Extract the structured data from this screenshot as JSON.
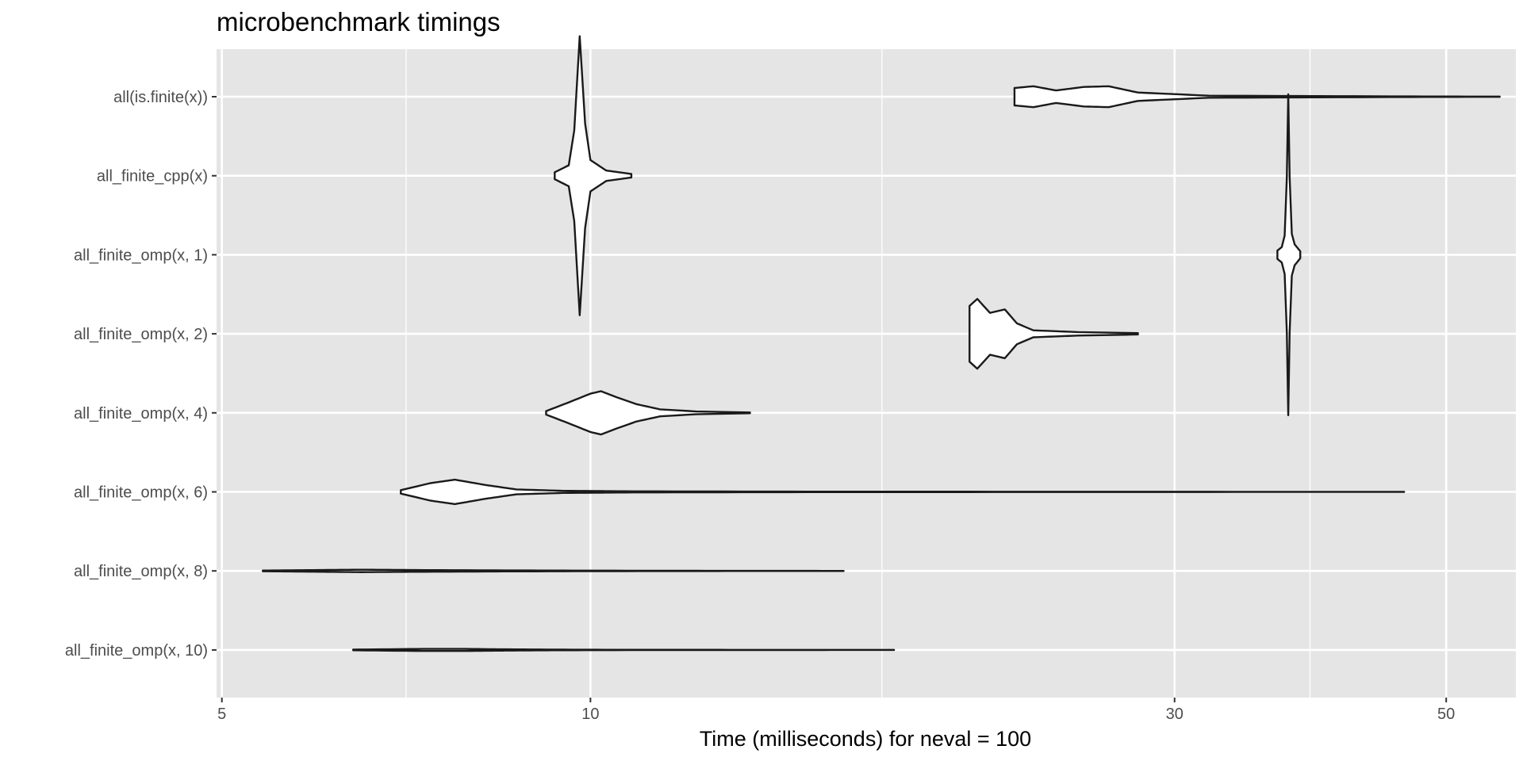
{
  "chart_data": {
    "type": "violin",
    "title": "microbenchmark timings",
    "xlabel": "Time (milliseconds) for neval = 100",
    "ylabel": "",
    "x_scale": "log10",
    "xlim": [
      4.95,
      57
    ],
    "x_ticks": [
      5,
      10,
      30,
      50
    ],
    "x_tick_labels": [
      "5",
      "10",
      "30",
      "50"
    ],
    "x_minor_breaks": [
      7.07,
      17.3,
      38.7
    ],
    "grid": true,
    "legend": "none",
    "colors": {
      "panel": "#e5e5e5",
      "grid": "#ffffff",
      "outline": "#1a1a1a",
      "axis_text": "#4d4d4d"
    },
    "series": [
      {
        "name": "all_finite_omp(x, 10)",
        "min": 6.4,
        "max": 17.7,
        "profile": [
          [
            6.4,
            0.01
          ],
          [
            7.3,
            0.03
          ],
          [
            7.9,
            0.03
          ],
          [
            8.4,
            0.02
          ],
          [
            9.3,
            0.01
          ],
          [
            10.5,
            0.005
          ],
          [
            13.0,
            0.003
          ],
          [
            15.5,
            0.002
          ],
          [
            17.7,
            0.001
          ]
        ]
      },
      {
        "name": "all_finite_omp(x, 8)",
        "min": 5.4,
        "max": 16.1,
        "profile": [
          [
            5.4,
            0.01
          ],
          [
            6.0,
            0.025
          ],
          [
            6.5,
            0.035
          ],
          [
            7.2,
            0.025
          ],
          [
            8.5,
            0.015
          ],
          [
            10.0,
            0.008
          ],
          [
            12.5,
            0.004
          ],
          [
            14.5,
            0.002
          ],
          [
            16.1,
            0.001
          ]
        ]
      },
      {
        "name": "all_finite_omp(x, 6)",
        "min": 7.0,
        "max": 46.2,
        "profile": [
          [
            7.0,
            0.05
          ],
          [
            7.4,
            0.25
          ],
          [
            7.75,
            0.35
          ],
          [
            8.2,
            0.2
          ],
          [
            8.7,
            0.07
          ],
          [
            9.5,
            0.03
          ],
          [
            11.0,
            0.015
          ],
          [
            15.0,
            0.008
          ],
          [
            25.0,
            0.004
          ],
          [
            38.0,
            0.002
          ],
          [
            46.2,
            0.001
          ]
        ]
      },
      {
        "name": "all_finite_omp(x, 4)",
        "min": 9.2,
        "max": 13.5,
        "profile": [
          [
            9.2,
            0.05
          ],
          [
            9.6,
            0.3
          ],
          [
            10.0,
            0.55
          ],
          [
            10.2,
            0.62
          ],
          [
            10.5,
            0.45
          ],
          [
            10.9,
            0.25
          ],
          [
            11.4,
            0.1
          ],
          [
            12.2,
            0.04
          ],
          [
            13.5,
            0.01
          ]
        ]
      },
      {
        "name": "all_finite_omp(x, 2)",
        "min": 20.4,
        "max": 28.0,
        "profile": [
          [
            20.4,
            0.8
          ],
          [
            20.7,
            1.0
          ],
          [
            21.2,
            0.6
          ],
          [
            21.8,
            0.7
          ],
          [
            22.3,
            0.3
          ],
          [
            23.0,
            0.1
          ],
          [
            25.0,
            0.05
          ],
          [
            28.0,
            0.02
          ]
        ]
      },
      {
        "name": "all_finite_omp(x, 1)",
        "min": 36.4,
        "max": 38.0,
        "profile": [
          [
            36.4,
            0.12
          ],
          [
            36.7,
            0.22
          ],
          [
            36.9,
            0.55
          ],
          [
            37.05,
            2.2
          ],
          [
            37.15,
            4.6
          ],
          [
            37.25,
            2.2
          ],
          [
            37.4,
            0.6
          ],
          [
            37.6,
            0.3
          ],
          [
            38.0,
            0.1
          ]
        ]
      },
      {
        "name": "all_finite_cpp(x)",
        "min": 9.35,
        "max": 10.8,
        "profile": [
          [
            9.35,
            0.1
          ],
          [
            9.6,
            0.3
          ],
          [
            9.7,
            1.3
          ],
          [
            9.8,
            4.0
          ],
          [
            9.9,
            1.5
          ],
          [
            10.0,
            0.45
          ],
          [
            10.3,
            0.15
          ],
          [
            10.8,
            0.05
          ]
        ]
      },
      {
        "name": "all(is.finite(x))",
        "min": 22.2,
        "max": 55.3,
        "profile": [
          [
            22.2,
            0.25
          ],
          [
            23.0,
            0.3
          ],
          [
            24.0,
            0.18
          ],
          [
            25.3,
            0.28
          ],
          [
            26.5,
            0.3
          ],
          [
            28.0,
            0.12
          ],
          [
            32.0,
            0.03
          ],
          [
            45.0,
            0.01
          ],
          [
            55.3,
            0.003
          ]
        ]
      }
    ]
  }
}
